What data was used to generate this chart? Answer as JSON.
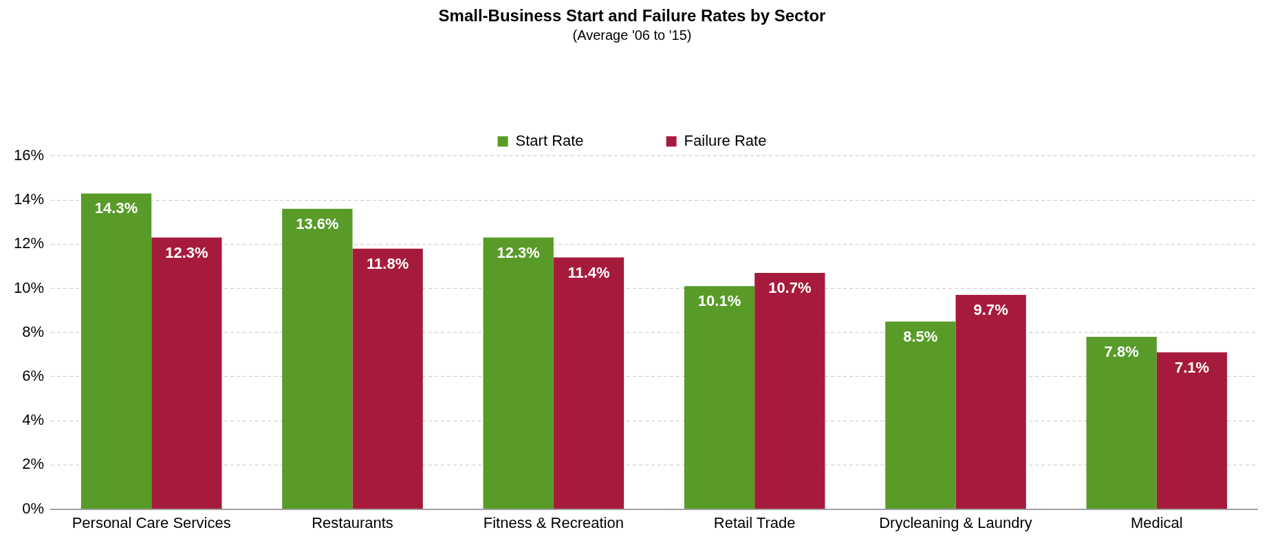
{
  "chart_data": {
    "type": "bar",
    "title": "Small-Business Start and Failure Rates by Sector",
    "subtitle": "(Average '06 to '15)",
    "categories": [
      "Personal Care Services",
      "Restaurants",
      "Fitness & Recreation",
      "Retail Trade",
      "Drycleaning & Laundry",
      "Medical"
    ],
    "series": [
      {
        "name": "Start Rate",
        "color": "#589b28",
        "values": [
          14.3,
          13.6,
          12.3,
          10.1,
          8.5,
          7.8
        ],
        "value_labels": [
          "14.3%",
          "13.6%",
          "12.3%",
          "10.1%",
          "8.5%",
          "7.8%"
        ]
      },
      {
        "name": "Failure Rate",
        "color": "#a61b3c",
        "values": [
          12.3,
          11.8,
          11.4,
          10.7,
          9.7,
          7.1
        ],
        "value_labels": [
          "12.3%",
          "11.8%",
          "11.4%",
          "10.7%",
          "9.7%",
          "7.1%"
        ]
      }
    ],
    "ylim": [
      0,
      16
    ],
    "yticks": [
      {
        "value": 0,
        "label": "0%"
      },
      {
        "value": 2,
        "label": "2%"
      },
      {
        "value": 4,
        "label": "4%"
      },
      {
        "value": 6,
        "label": "6%"
      },
      {
        "value": 8,
        "label": "8%"
      },
      {
        "value": 10,
        "label": "10%"
      },
      {
        "value": 12,
        "label": "12%"
      },
      {
        "value": 14,
        "label": "14%"
      },
      {
        "value": 16,
        "label": "16%"
      }
    ],
    "grid": "y",
    "legend": "top"
  }
}
